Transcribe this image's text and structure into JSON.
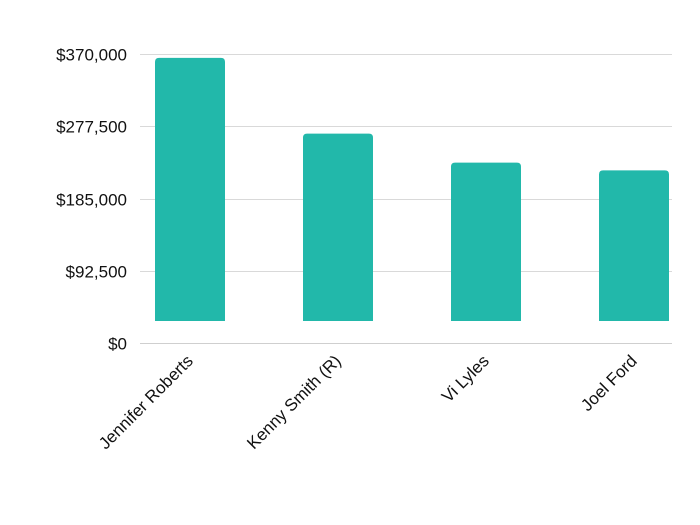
{
  "chart_data": {
    "type": "bar",
    "title": "",
    "xlabel": "",
    "ylabel": "",
    "categories": [
      "Jennifer Roberts",
      "Kenny Smith (R)",
      "Vi Lyles",
      "Joel Ford"
    ],
    "values": [
      365000,
      268000,
      231000,
      221000
    ],
    "ylim": [
      0,
      370000
    ],
    "yticks": [
      0,
      92500,
      185000,
      277500,
      370000
    ],
    "ytick_labels": [
      "$0",
      "$92,500",
      "$185,000",
      "$277,500",
      "$370,000"
    ],
    "grid": true,
    "legend": "none",
    "colors": {
      "bar": "#22b8aa",
      "grid": "#d9d9d9",
      "axis": "#cfcfcf",
      "text": "#111111"
    }
  }
}
